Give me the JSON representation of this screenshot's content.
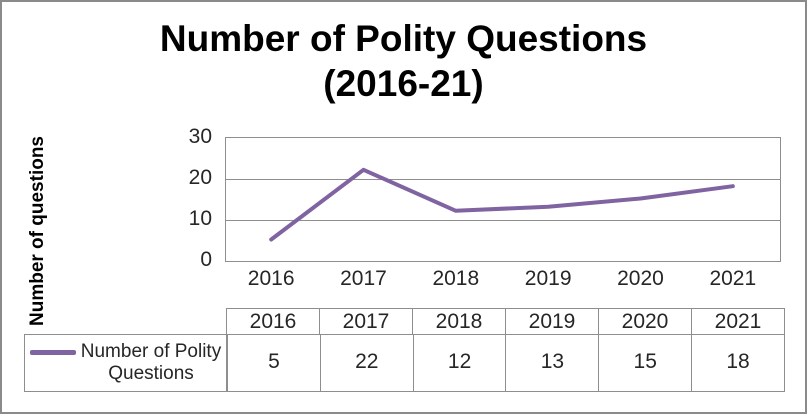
{
  "chart_data": {
    "type": "line",
    "title": "Number of Polity Questions (2016-21)",
    "xlabel": "",
    "ylabel": "Number of questions",
    "categories": [
      "2016",
      "2017",
      "2018",
      "2019",
      "2020",
      "2021"
    ],
    "series": [
      {
        "name": "Number of Polity Questions",
        "values": [
          5,
          22,
          12,
          13,
          15,
          18
        ],
        "color": "#8064A2"
      }
    ],
    "ylim": [
      0,
      30
    ],
    "yticks": [
      0,
      10,
      20,
      30
    ],
    "grid": "horizontal",
    "legend_position": "bottom-table"
  },
  "data_table": {
    "columns": [
      "2016",
      "2017",
      "2018",
      "2019",
      "2020",
      "2021"
    ],
    "rows": [
      {
        "label": "Number of Polity Questions",
        "swatch_color": "#8064A2",
        "values": [
          5,
          22,
          12,
          13,
          15,
          18
        ]
      }
    ]
  },
  "colors": {
    "line": "#8064A2",
    "grid": "#8e8e8e",
    "frame_border": "#8a8a8a",
    "text": "#262626",
    "title_text": "#000000"
  }
}
